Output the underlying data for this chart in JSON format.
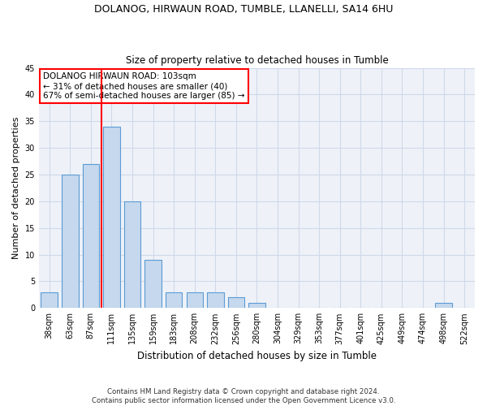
{
  "title1": "DOLANOG, HIRWAUN ROAD, TUMBLE, LLANELLI, SA14 6HU",
  "title2": "Size of property relative to detached houses in Tumble",
  "xlabel": "Distribution of detached houses by size in Tumble",
  "ylabel": "Number of detached properties",
  "categories": [
    "38sqm",
    "63sqm",
    "87sqm",
    "111sqm",
    "135sqm",
    "159sqm",
    "183sqm",
    "208sqm",
    "232sqm",
    "256sqm",
    "280sqm",
    "304sqm",
    "329sqm",
    "353sqm",
    "377sqm",
    "401sqm",
    "425sqm",
    "449sqm",
    "474sqm",
    "498sqm",
    "522sqm"
  ],
  "values": [
    3,
    25,
    27,
    34,
    20,
    9,
    3,
    3,
    3,
    2,
    1,
    0,
    0,
    0,
    0,
    0,
    0,
    0,
    0,
    1,
    0
  ],
  "bar_color": "#c5d8ed",
  "bar_edge_color": "#5b9bd5",
  "grid_color": "#d0d8e8",
  "background_color": "#eef2f8",
  "vline_x_index": 3,
  "vline_color": "red",
  "annotation_line1": "DOLANOG HIRWAUN ROAD: 103sqm",
  "annotation_line2": "← 31% of detached houses are smaller (40)",
  "annotation_line3": "67% of semi-detached houses are larger (85) →",
  "footer": "Contains HM Land Registry data © Crown copyright and database right 2024.\nContains public sector information licensed under the Open Government Licence v3.0.",
  "ylim": [
    0,
    45
  ],
  "yticks": [
    0,
    5,
    10,
    15,
    20,
    25,
    30,
    35,
    40,
    45
  ]
}
